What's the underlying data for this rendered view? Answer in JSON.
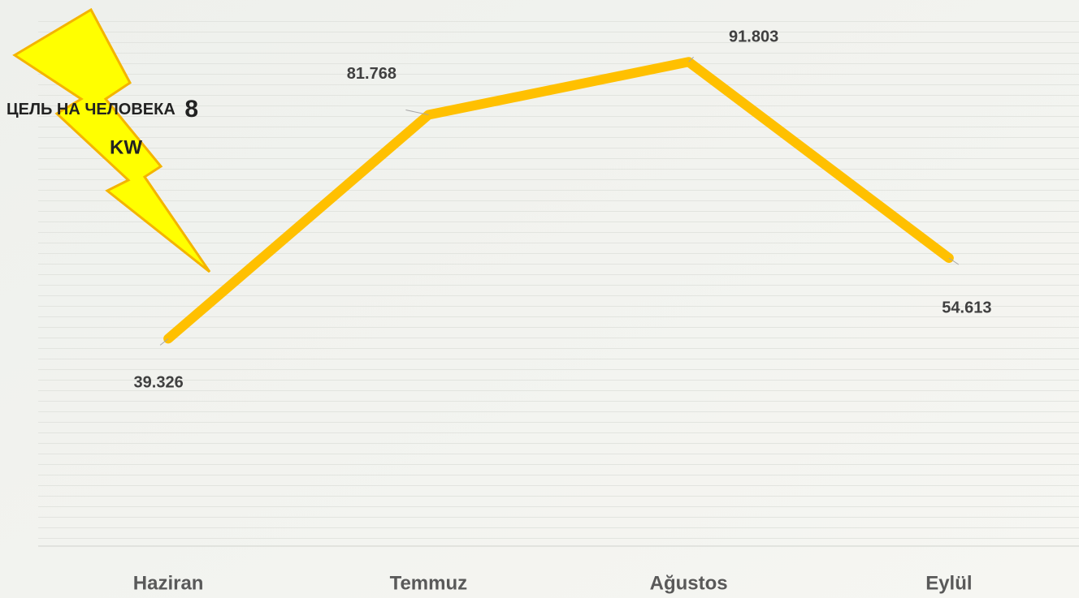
{
  "chart_data": {
    "type": "line",
    "annotation": [
      "ЦЕЛЬ НА ЧЕЛОВЕКА",
      "8",
      "KW"
    ],
    "categories": [
      "Haziran",
      "Temmuz",
      "Ağustos",
      "Eylül"
    ],
    "values": [
      39.326,
      81.768,
      91.803,
      54.613
    ],
    "color": "#FFC000",
    "ylim": [
      0,
      100
    ]
  }
}
